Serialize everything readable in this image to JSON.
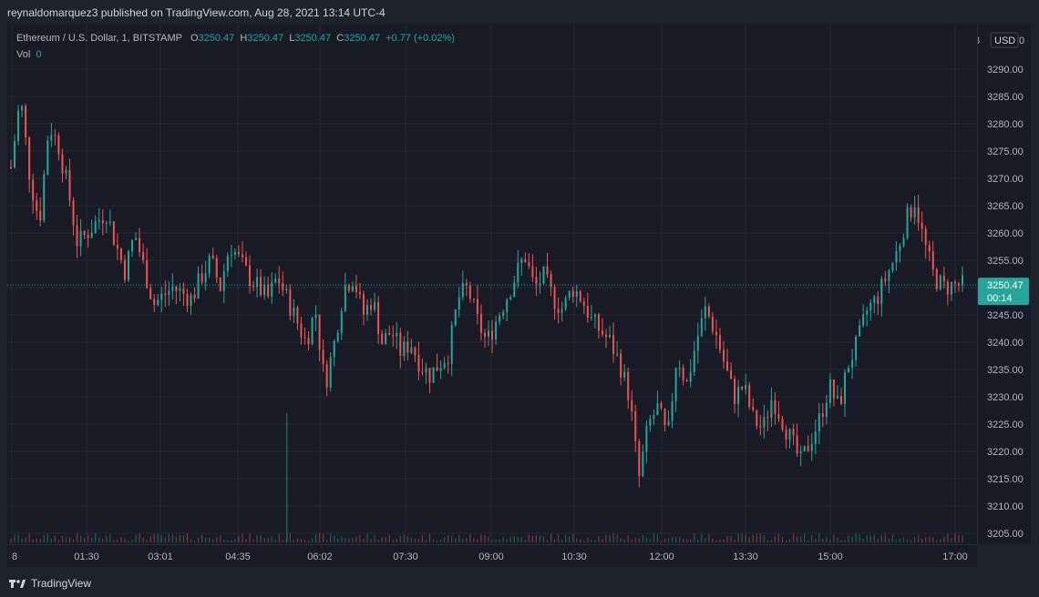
{
  "header": {
    "published_text": "reynaldomarquez3 published on TradingView.com, Aug 28, 2021 13:14 UTC-4"
  },
  "legend": {
    "symbol": "Ethereum / U.S. Dollar, 1, BITSTAMP",
    "o_label": "O",
    "o_value": "3250.47",
    "h_label": "H",
    "h_value": "3250.47",
    "l_label": "L",
    "l_value": "3250.47",
    "c_label": "C",
    "c_value": "3250.47",
    "change": "+0.77 (+0.02%)",
    "vol_label": "Vol",
    "vol_value": "0"
  },
  "price_axis": {
    "currency": "USD",
    "top_tick": "3",
    "top_tick_right": "0",
    "current_price": "3250.47",
    "countdown": "00:14"
  },
  "footer": {
    "brand": "TradingView"
  },
  "colors": {
    "up": "#26a69a",
    "down": "#ef5350",
    "background": "#181b25",
    "grid": "#262a35",
    "badge": "#26a69a"
  },
  "chart_data": {
    "type": "candlestick",
    "y_ticks": [
      3290,
      3285,
      3280,
      3275,
      3270,
      3265,
      3260,
      3255,
      3250,
      3245,
      3240,
      3235,
      3230,
      3225,
      3220,
      3215,
      3210,
      3205
    ],
    "y_tick_labels": [
      "3290.00",
      "3285.00",
      "3280.00",
      "3275.00",
      "3270.00",
      "3265.00",
      "3260.00",
      "3255.00",
      "3250.00",
      "3245.00",
      "3240.00",
      "3235.00",
      "3230.00",
      "3225.00",
      "3220.00",
      "3215.00",
      "3210.00",
      "3205.00"
    ],
    "x_ticks": [
      "8",
      "01:30",
      "03:01",
      "04:35",
      "06:02",
      "07:30",
      "09:00",
      "10:30",
      "12:00",
      "13:30",
      "15:00",
      "17:00"
    ],
    "grid": true,
    "last_price": 3250.47,
    "close_path": [
      [
        0,
        3272
      ],
      [
        0.01,
        3285
      ],
      [
        0.02,
        3270
      ],
      [
        0.03,
        3262
      ],
      [
        0.04,
        3280
      ],
      [
        0.05,
        3276
      ],
      [
        0.06,
        3268
      ],
      [
        0.07,
        3258
      ],
      [
        0.09,
        3262
      ],
      [
        0.1,
        3264
      ],
      [
        0.11,
        3258
      ],
      [
        0.12,
        3253
      ],
      [
        0.13,
        3260
      ],
      [
        0.15,
        3247
      ],
      [
        0.17,
        3250
      ],
      [
        0.19,
        3248
      ],
      [
        0.2,
        3252
      ],
      [
        0.21,
        3255
      ],
      [
        0.22,
        3250
      ],
      [
        0.23,
        3258
      ],
      [
        0.25,
        3252
      ],
      [
        0.27,
        3248
      ],
      [
        0.28,
        3252
      ],
      [
        0.3,
        3244
      ],
      [
        0.31,
        3240
      ],
      [
        0.32,
        3246
      ],
      [
        0.33,
        3232
      ],
      [
        0.34,
        3240
      ],
      [
        0.35,
        3250
      ],
      [
        0.36,
        3252
      ],
      [
        0.37,
        3245
      ],
      [
        0.38,
        3248
      ],
      [
        0.39,
        3240
      ],
      [
        0.4,
        3242
      ],
      [
        0.41,
        3238
      ],
      [
        0.42,
        3240
      ],
      [
        0.43,
        3236
      ],
      [
        0.44,
        3234
      ],
      [
        0.45,
        3236
      ],
      [
        0.46,
        3238
      ],
      [
        0.47,
        3248
      ],
      [
        0.48,
        3250
      ],
      [
        0.49,
        3244
      ],
      [
        0.5,
        3240
      ],
      [
        0.51,
        3244
      ],
      [
        0.52,
        3248
      ],
      [
        0.53,
        3252
      ],
      [
        0.54,
        3256
      ],
      [
        0.55,
        3250
      ],
      [
        0.56,
        3252
      ],
      [
        0.57,
        3248
      ],
      [
        0.58,
        3246
      ],
      [
        0.59,
        3250
      ],
      [
        0.6,
        3248
      ],
      [
        0.61,
        3244
      ],
      [
        0.62,
        3242
      ],
      [
        0.63,
        3240
      ],
      [
        0.64,
        3236
      ],
      [
        0.65,
        3230
      ],
      [
        0.66,
        3215
      ],
      [
        0.67,
        3225
      ],
      [
        0.68,
        3228
      ],
      [
        0.69,
        3222
      ],
      [
        0.7,
        3238
      ],
      [
        0.71,
        3232
      ],
      [
        0.72,
        3240
      ],
      [
        0.73,
        3246
      ],
      [
        0.74,
        3242
      ],
      [
        0.75,
        3236
      ],
      [
        0.76,
        3230
      ],
      [
        0.77,
        3232
      ],
      [
        0.78,
        3226
      ],
      [
        0.79,
        3224
      ],
      [
        0.8,
        3230
      ],
      [
        0.81,
        3226
      ],
      [
        0.82,
        3222
      ],
      [
        0.83,
        3218
      ],
      [
        0.84,
        3222
      ],
      [
        0.85,
        3226
      ],
      [
        0.86,
        3232
      ],
      [
        0.87,
        3228
      ],
      [
        0.88,
        3236
      ],
      [
        0.89,
        3240
      ],
      [
        0.9,
        3246
      ],
      [
        0.91,
        3248
      ],
      [
        0.92,
        3252
      ],
      [
        0.93,
        3256
      ],
      [
        0.94,
        3262
      ],
      [
        0.95,
        3266
      ],
      [
        0.96,
        3258
      ],
      [
        0.97,
        3252
      ],
      [
        0.98,
        3250
      ],
      [
        0.99,
        3250.47
      ]
    ],
    "spike_volume_at": 0.29
  }
}
